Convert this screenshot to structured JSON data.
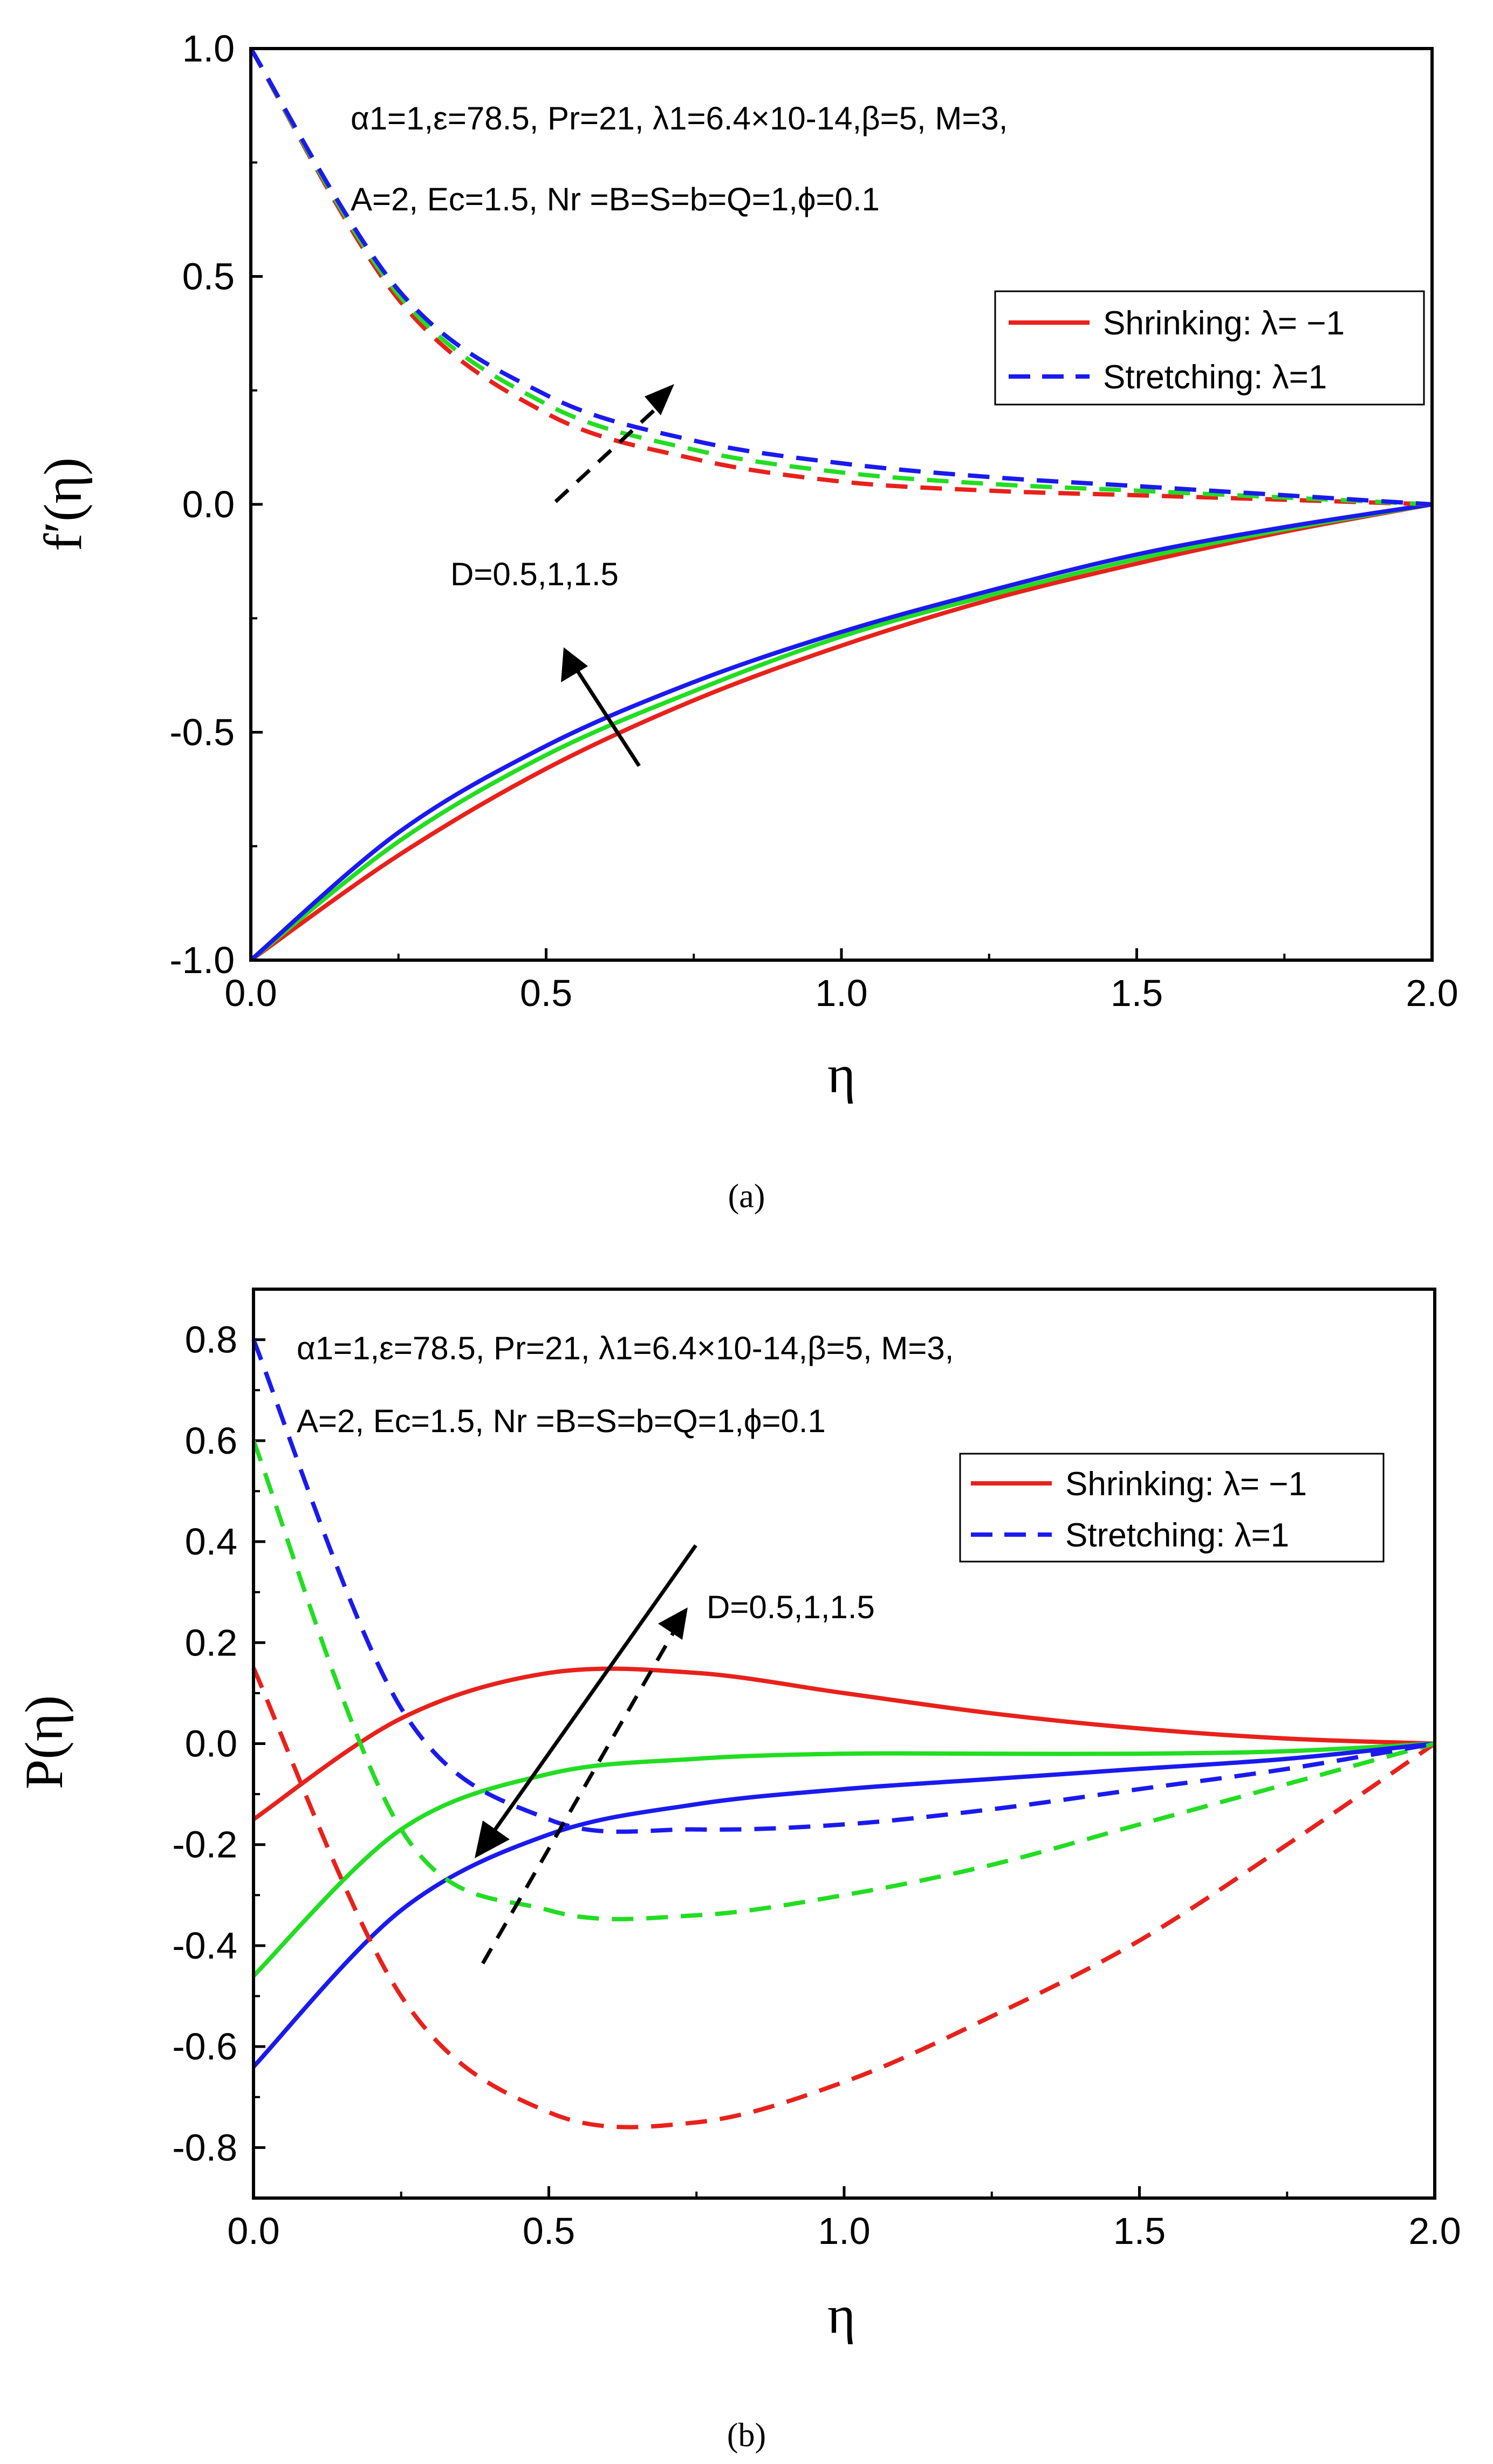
{
  "chart_data": [
    {
      "type": "line",
      "panel_label": "(a)",
      "xlabel": "η",
      "ylabel": "f′(η)",
      "xlim": [
        0,
        2
      ],
      "ylim": [
        -1,
        1
      ],
      "xticks": [
        "0.0",
        "0.5",
        "1.0",
        "1.5",
        "2.0"
      ],
      "yticks": [
        "-1.0",
        "-0.5",
        "0.0",
        "0.5",
        "1.0"
      ],
      "params_line1": "α1=1,ε=78.5, Pr=21, λ1=6.4×10-14,β=5, M=3,",
      "params_line2": "A=2, Ec=1.5, Nr =B=S=b=Q=1,ϕ=0.1",
      "annotation": "D=0.5,1,1.5",
      "legend": [
        {
          "label": "Shrinking: λ= −1",
          "style": "solid",
          "color": "#e8211b"
        },
        {
          "label": "Stretching: λ=1",
          "style": "dashed",
          "color": "#1a1aee"
        }
      ],
      "series": [
        {
          "name": "Shrinking D=0.5",
          "style": "solid",
          "color": "#e8211b",
          "x": [
            0,
            0.25,
            0.5,
            0.75,
            1.0,
            1.25,
            1.5,
            1.75,
            2.0
          ],
          "y": [
            -1.0,
            -0.77,
            -0.58,
            -0.43,
            -0.31,
            -0.21,
            -0.13,
            -0.06,
            0.0
          ]
        },
        {
          "name": "Shrinking D=1",
          "style": "solid",
          "color": "#22dd22",
          "x": [
            0,
            0.25,
            0.5,
            0.75,
            1.0,
            1.25,
            1.5,
            1.75,
            2.0
          ],
          "y": [
            -1.0,
            -0.74,
            -0.55,
            -0.41,
            -0.29,
            -0.2,
            -0.12,
            -0.055,
            0.0
          ]
        },
        {
          "name": "Shrinking D=1.5",
          "style": "solid",
          "color": "#1a1aee",
          "x": [
            0,
            0.25,
            0.5,
            0.75,
            1.0,
            1.25,
            1.5,
            1.75,
            2.0
          ],
          "y": [
            -1.0,
            -0.72,
            -0.53,
            -0.39,
            -0.28,
            -0.19,
            -0.11,
            -0.05,
            0.0
          ]
        },
        {
          "name": "Stretching D=0.5",
          "style": "dashed",
          "color": "#e8211b",
          "x": [
            0,
            0.25,
            0.5,
            0.75,
            1.0,
            1.25,
            1.5,
            1.75,
            2.0
          ],
          "y": [
            1.0,
            0.45,
            0.2,
            0.1,
            0.05,
            0.03,
            0.02,
            0.01,
            0.0
          ]
        },
        {
          "name": "Stretching D=1",
          "style": "dashed",
          "color": "#22dd22",
          "x": [
            0,
            0.25,
            0.5,
            0.75,
            1.0,
            1.25,
            1.5,
            1.75,
            2.0
          ],
          "y": [
            1.0,
            0.46,
            0.22,
            0.12,
            0.07,
            0.045,
            0.03,
            0.015,
            0.0
          ]
        },
        {
          "name": "Stretching D=1.5",
          "style": "dashed",
          "color": "#1a1aee",
          "x": [
            0,
            0.25,
            0.5,
            0.75,
            1.0,
            1.25,
            1.5,
            1.75,
            2.0
          ],
          "y": [
            1.0,
            0.47,
            0.24,
            0.14,
            0.09,
            0.06,
            0.04,
            0.02,
            0.0
          ]
        }
      ]
    },
    {
      "type": "line",
      "panel_label": "(b)",
      "xlabel": "η",
      "ylabel": "P(η)",
      "xlim": [
        0,
        2
      ],
      "ylim": [
        -0.9,
        0.9
      ],
      "xticks": [
        "0.0",
        "0.5",
        "1.0",
        "1.5",
        "2.0"
      ],
      "yticks": [
        "-0.8",
        "-0.6",
        "-0.4",
        "-0.2",
        "0.0",
        "0.2",
        "0.4",
        "0.6",
        "0.8"
      ],
      "params_line1": "α1=1,ε=78.5, Pr=21, λ1=6.4×10-14,β=5, M=3,",
      "params_line2": "A=2, Ec=1.5, Nr =B=S=b=Q=1,ϕ=0.1",
      "annotation": "D=0.5,1,1.5",
      "legend": [
        {
          "label": "Shrinking: λ= −1",
          "style": "solid",
          "color": "#e8211b"
        },
        {
          "label": "Stretching: λ=1",
          "style": "dashed",
          "color": "#1a1aee"
        }
      ],
      "series": [
        {
          "name": "Shrinking D=0.5",
          "style": "solid",
          "color": "#e8211b",
          "x": [
            0,
            0.25,
            0.5,
            0.75,
            1.0,
            1.25,
            1.5,
            1.75,
            2.0
          ],
          "y": [
            -0.15,
            0.05,
            0.14,
            0.14,
            0.1,
            0.06,
            0.03,
            0.01,
            0.0
          ]
        },
        {
          "name": "Shrinking D=1",
          "style": "solid",
          "color": "#22dd22",
          "x": [
            0,
            0.25,
            0.5,
            0.75,
            1.0,
            1.25,
            1.5,
            1.75,
            2.0
          ],
          "y": [
            -0.46,
            -0.17,
            -0.06,
            -0.03,
            -0.02,
            -0.02,
            -0.02,
            -0.015,
            0.0
          ]
        },
        {
          "name": "Shrinking D=1.5",
          "style": "solid",
          "color": "#1a1aee",
          "x": [
            0,
            0.25,
            0.5,
            0.75,
            1.0,
            1.25,
            1.5,
            1.75,
            2.0
          ],
          "y": [
            -0.64,
            -0.33,
            -0.18,
            -0.12,
            -0.09,
            -0.07,
            -0.05,
            -0.03,
            0.0
          ]
        },
        {
          "name": "Stretching D=0.5",
          "style": "dashed",
          "color": "#e8211b",
          "x": [
            0,
            0.25,
            0.5,
            0.75,
            1.0,
            1.25,
            1.5,
            1.75,
            2.0
          ],
          "y": [
            0.15,
            -0.5,
            -0.73,
            -0.75,
            -0.67,
            -0.54,
            -0.39,
            -0.2,
            0.0
          ]
        },
        {
          "name": "Stretching D=1",
          "style": "dashed",
          "color": "#22dd22",
          "x": [
            0,
            0.25,
            0.5,
            0.75,
            1.0,
            1.25,
            1.5,
            1.75,
            2.0
          ],
          "y": [
            0.6,
            -0.17,
            -0.33,
            -0.34,
            -0.3,
            -0.24,
            -0.16,
            -0.08,
            0.0
          ]
        },
        {
          "name": "Stretching D=1.5",
          "style": "dashed",
          "color": "#1a1aee",
          "x": [
            0,
            0.25,
            0.5,
            0.75,
            1.0,
            1.25,
            1.5,
            1.75,
            2.0
          ],
          "y": [
            0.8,
            0.07,
            -0.15,
            -0.17,
            -0.16,
            -0.13,
            -0.09,
            -0.05,
            0.0
          ]
        }
      ]
    }
  ]
}
